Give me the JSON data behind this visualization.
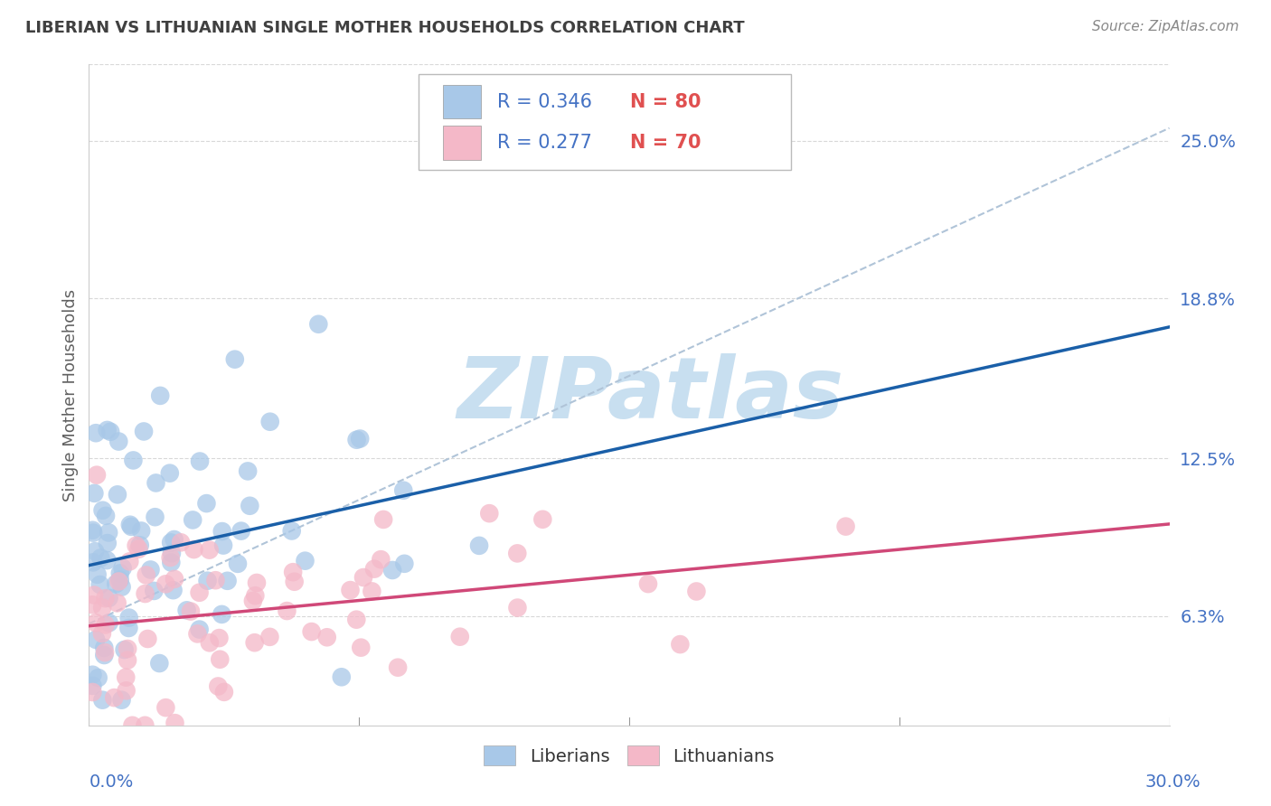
{
  "title": "LIBERIAN VS LITHUANIAN SINGLE MOTHER HOUSEHOLDS CORRELATION CHART",
  "source": "Source: ZipAtlas.com",
  "ylabel": "Single Mother Households",
  "ytick_vals": [
    0.063,
    0.125,
    0.188,
    0.25
  ],
  "ytick_labels": [
    "6.3%",
    "12.5%",
    "18.8%",
    "25.0%"
  ],
  "xtick_labels": [
    "0.0%",
    "30.0%"
  ],
  "xlim": [
    0.0,
    0.3
  ],
  "ylim": [
    0.02,
    0.28
  ],
  "legend_r1": "R = 0.346",
  "legend_n1": "N = 80",
  "legend_r2": "R = 0.277",
  "legend_n2": "N = 70",
  "blue_color": "#a8c8e8",
  "pink_color": "#f4b8c8",
  "blue_line_color": "#1a5fa8",
  "pink_line_color": "#d04878",
  "dashed_line_color": "#b0c4d8",
  "r_text_color": "#4472c4",
  "n_text_color": "#e05050",
  "watermark_color": "#c8dff0",
  "title_color": "#404040",
  "source_color": "#888888",
  "ylabel_color": "#606060",
  "axis_label_color": "#4472c4",
  "grid_color": "#d8d8d8",
  "blue_seed": 42,
  "pink_seed": 99
}
